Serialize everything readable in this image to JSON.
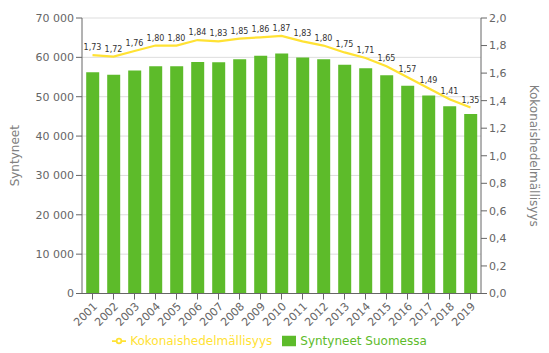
{
  "chart_data": {
    "type": "bar",
    "categories": [
      "2001",
      "2002",
      "2003",
      "2004",
      "2005",
      "2006",
      "2007",
      "2008",
      "2009",
      "2010",
      "2011",
      "2012",
      "2013",
      "2014",
      "2015",
      "2016",
      "2017",
      "2018",
      "2019"
    ],
    "series": [
      {
        "name": "Syntyneet Suomessa",
        "type": "bar",
        "color": "#5DBB2A",
        "values": [
          56189,
          55555,
          56630,
          57758,
          57745,
          58840,
          58729,
          59530,
          60430,
          60980,
          59961,
          59493,
          58134,
          57232,
          55472,
          52814,
          50321,
          47577,
          45613
        ]
      },
      {
        "name": "Kokonaishedelmällisyys",
        "type": "line",
        "color": "#FFE234",
        "axis": "y2",
        "data_labels": true,
        "values": [
          1.73,
          1.72,
          1.76,
          1.8,
          1.8,
          1.84,
          1.83,
          1.85,
          1.86,
          1.87,
          1.83,
          1.8,
          1.75,
          1.71,
          1.65,
          1.57,
          1.49,
          1.41,
          1.35
        ],
        "value_labels": [
          "1,73",
          "1,72",
          "1,76",
          "1,80",
          "1,80",
          "1,84",
          "1,83",
          "1,85",
          "1,86",
          "1,87",
          "1,83",
          "1,80",
          "1,75",
          "1,71",
          "1,65",
          "1,57",
          "1,49",
          "1,41",
          "1,35"
        ]
      }
    ],
    "ylabel": "Syntyneet",
    "y2label": "Kokonaishedelmällisyys",
    "ylim": [
      0,
      70000
    ],
    "yticks": [
      0,
      {
        "value": 10000,
        "label": "10 000"
      },
      {
        "value": 20000,
        "label": "20 000"
      },
      {
        "value": 30000,
        "label": "30 000"
      },
      {
        "value": 40000,
        "label": "40 000"
      },
      {
        "value": 50000,
        "label": "50 000"
      },
      {
        "value": 60000,
        "label": "60 000"
      },
      {
        "value": 70000,
        "label": "70 000"
      }
    ],
    "y2lim": [
      0.0,
      2.0
    ],
    "y2ticks": [
      {
        "value": 0.0,
        "label": "0,0"
      },
      {
        "value": 0.2,
        "label": "0,2"
      },
      {
        "value": 0.4,
        "label": "0,4"
      },
      {
        "value": 0.6,
        "label": "0,6"
      },
      {
        "value": 0.8,
        "label": "0,8"
      },
      {
        "value": 1.0,
        "label": "1,0"
      },
      {
        "value": 1.2,
        "label": "1,2"
      },
      {
        "value": 1.4,
        "label": "1,4"
      },
      {
        "value": 1.6,
        "label": "1,6"
      },
      {
        "value": 1.8,
        "label": "1,8"
      },
      {
        "value": 2.0,
        "label": "2,0"
      }
    ],
    "grid": true,
    "legend": "bottom"
  }
}
